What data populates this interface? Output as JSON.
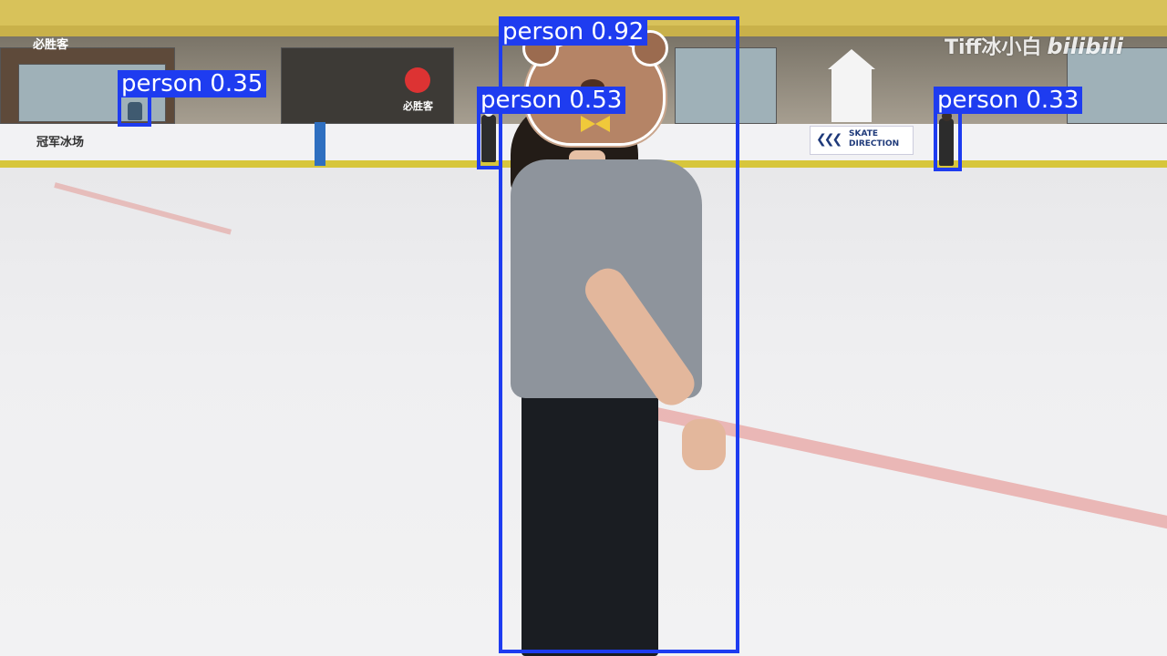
{
  "detections": [
    {
      "label": "person",
      "score": "0.92"
    },
    {
      "label": "person",
      "score": "0.53"
    },
    {
      "label": "person",
      "score": "0.35"
    },
    {
      "label": "person",
      "score": "0.33"
    }
  ],
  "box_color": "#1e3cf0",
  "label_text_color": "#ffffff",
  "watermark": {
    "user": "Tiff冰小白",
    "brand": "bilibili"
  },
  "signs": {
    "shop_left": "必胜客",
    "shop_mid": "必胜客",
    "rink_sponsor": "冠军冰场",
    "skate_direction": "SKATE DIRECTION",
    "skate_arrows": "❮❮❮"
  }
}
